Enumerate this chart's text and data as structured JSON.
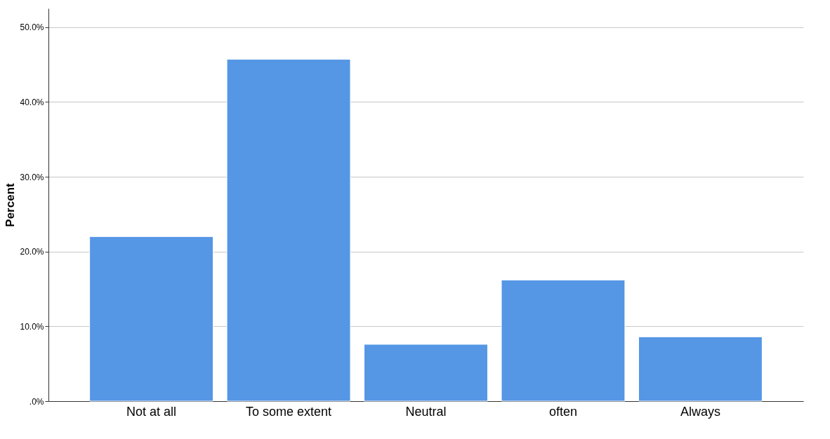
{
  "chart_data": {
    "type": "bar",
    "ylabel": "Percent",
    "categories": [
      "Not at all",
      "To some extent",
      "Neutral",
      "often",
      "Always"
    ],
    "values": [
      22.0,
      45.7,
      7.6,
      16.2,
      8.6
    ],
    "color": "#5596e5",
    "ylim": [
      0,
      52.5
    ],
    "yticks": [
      {
        "value": 0,
        "label": ".0%"
      },
      {
        "value": 10,
        "label": "10.0%"
      },
      {
        "value": 20,
        "label": "20.0%"
      },
      {
        "value": 30,
        "label": "30.0%"
      },
      {
        "value": 40,
        "label": "40.0%"
      },
      {
        "value": 50,
        "label": "50.0%"
      }
    ],
    "grid": "y"
  }
}
